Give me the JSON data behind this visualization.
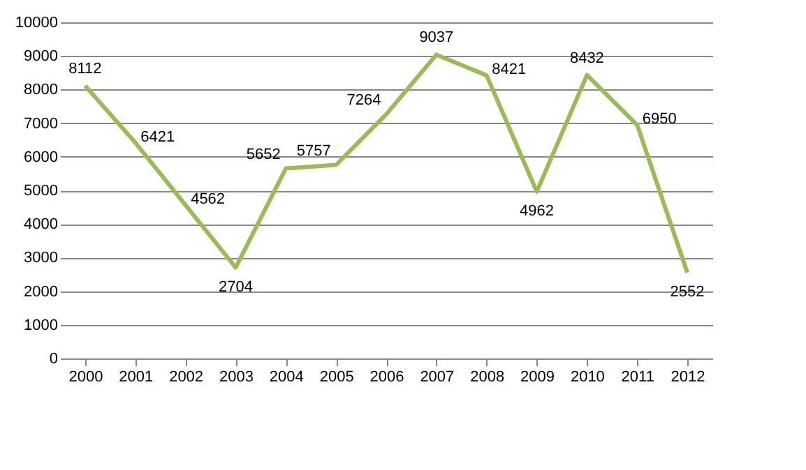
{
  "chart_data": {
    "type": "line",
    "categories": [
      "2000",
      "2001",
      "2002",
      "2003",
      "2004",
      "2005",
      "2006",
      "2007",
      "2008",
      "2009",
      "2010",
      "2011",
      "2012"
    ],
    "series": [
      {
        "color": "#9bbb59",
        "values": [
          8112,
          6421,
          4562,
          2704,
          5652,
          5757,
          7264,
          9037,
          8421,
          4962,
          8432,
          6950,
          2552
        ]
      }
    ],
    "ylim": [
      0,
      10000
    ],
    "yticks": [
      0,
      1000,
      2000,
      3000,
      4000,
      5000,
      6000,
      7000,
      8000,
      9000,
      10000
    ],
    "grid": "y",
    "data_labels": true,
    "marker": "none",
    "line_style": "solid",
    "legend": false
  }
}
